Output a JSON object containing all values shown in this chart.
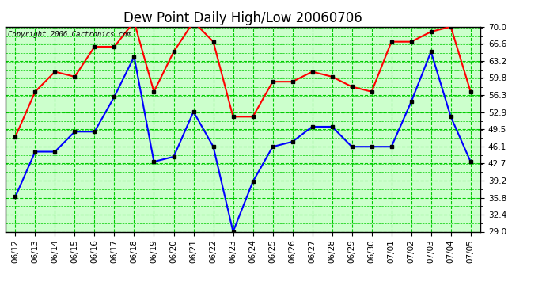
{
  "title": "Dew Point Daily High/Low 20060706",
  "copyright": "Copyright 2006 Cartronics.com",
  "x_labels": [
    "06/12",
    "06/13",
    "06/14",
    "06/15",
    "06/16",
    "06/17",
    "06/18",
    "06/19",
    "06/20",
    "06/21",
    "06/22",
    "06/23",
    "06/24",
    "06/25",
    "06/26",
    "06/27",
    "06/28",
    "06/29",
    "06/30",
    "07/01",
    "07/02",
    "07/03",
    "07/04",
    "07/05"
  ],
  "high_values": [
    48,
    57,
    61,
    60,
    66,
    66,
    71,
    57,
    65,
    71,
    67,
    52,
    52,
    59,
    59,
    61,
    60,
    58,
    57,
    67,
    67,
    69,
    70,
    57
  ],
  "low_values": [
    36,
    45,
    45,
    49,
    49,
    56,
    64,
    43,
    44,
    53,
    46,
    29,
    39,
    46,
    47,
    50,
    50,
    46,
    46,
    46,
    55,
    65,
    52,
    43
  ],
  "high_color": "#ff0000",
  "low_color": "#0000ff",
  "fig_bg_color": "#ffffff",
  "plot_bg_color": "#ccffcc",
  "grid_color": "#00cc00",
  "grid_color2": "#006600",
  "y_ticks": [
    29.0,
    32.4,
    35.8,
    39.2,
    42.7,
    46.1,
    49.5,
    52.9,
    56.3,
    59.8,
    63.2,
    66.6,
    70.0
  ],
  "ymin": 29.0,
  "ymax": 70.0,
  "marker": "s",
  "marker_color": "#000000",
  "marker_size": 3,
  "title_fontsize": 12,
  "tick_fontsize": 7.5,
  "copyright_fontsize": 6.5,
  "linewidth": 1.5
}
